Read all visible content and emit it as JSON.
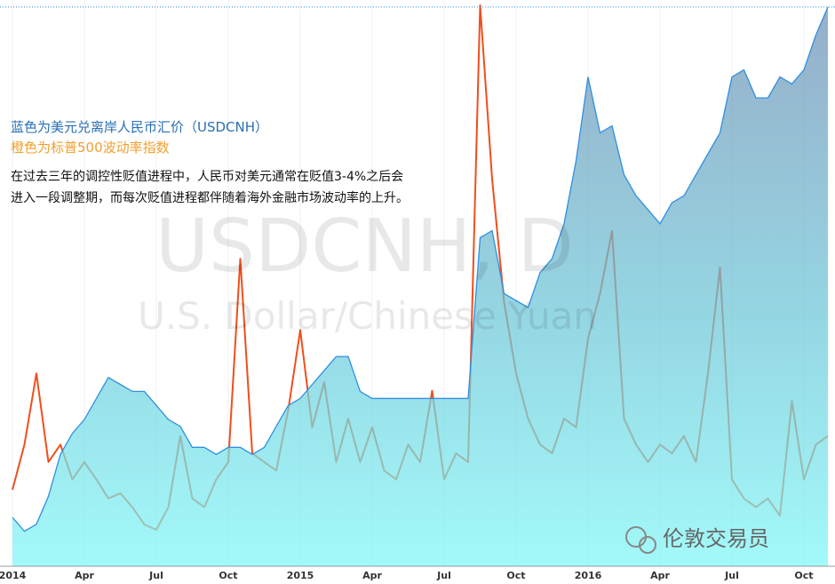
{
  "chart_data": {
    "type": "area",
    "series_notes": null,
    "annotations": [
      "在过去三年的调控性贬值进程中，人民币对美元通常在贬值3-4%之后会",
      "进入一段调整期，而每次贬值进程都伴随着海外金融市场波动率的上升。"
    ],
    "watermark": [
      "USDCNH, D",
      "U.S. Dollar/Chinese Yuan"
    ],
    "source": "伦敦交易员",
    "categories": [
      "2014",
      null,
      null,
      null,
      null,
      null,
      "Apr",
      null,
      null,
      null,
      null,
      null,
      "Jul",
      null,
      null,
      null,
      null,
      null,
      "Oct",
      null,
      null,
      null,
      null,
      null,
      "2015",
      null,
      null,
      null,
      null,
      null,
      "Apr",
      null,
      null,
      null,
      null,
      null,
      "Jul",
      null,
      null,
      null,
      null,
      null,
      "Oct",
      null,
      null,
      null,
      null,
      null,
      "2016",
      null,
      null,
      null,
      null,
      null,
      "Apr",
      null,
      null,
      null,
      null,
      null,
      "Jul",
      null,
      null,
      null,
      null,
      null,
      "Oct",
      null,
      null
    ],
    "ylim": [
      5.98,
      6.79
    ],
    "y2lim": [
      8.4,
      41.0
    ],
    "series": [
      {
        "name": "蓝色为美元兑离岸人民币汇价（USDCNH）",
        "type": "area",
        "color": "#2f8fe0",
        "values": [
          6.05,
          6.03,
          6.04,
          6.08,
          6.14,
          6.17,
          6.19,
          6.22,
          6.25,
          6.24,
          6.23,
          6.23,
          6.21,
          6.19,
          6.18,
          6.15,
          6.15,
          6.14,
          6.15,
          6.15,
          6.14,
          6.15,
          6.18,
          6.21,
          6.22,
          6.24,
          6.26,
          6.28,
          6.28,
          6.23,
          6.22,
          6.22,
          6.22,
          6.22,
          6.22,
          6.22,
          6.22,
          6.22,
          6.22,
          6.45,
          6.46,
          6.37,
          6.36,
          6.35,
          6.4,
          6.42,
          6.47,
          6.56,
          6.68,
          6.6,
          6.61,
          6.54,
          6.51,
          6.49,
          6.47,
          6.5,
          6.51,
          6.54,
          6.57,
          6.6,
          6.68,
          6.69,
          6.65,
          6.65,
          6.68,
          6.67,
          6.69,
          6.74,
          6.78
        ]
      },
      {
        "name": "橙色为标普500波动率指数",
        "type": "line",
        "axis": "y2",
        "color": "#f04e1c",
        "values": [
          12.8,
          15.4,
          19.5,
          14.4,
          15.4,
          13.4,
          14.4,
          13.4,
          12.3,
          12.6,
          11.8,
          10.8,
          10.5,
          11.8,
          15.9,
          12.3,
          11.8,
          13.4,
          14.4,
          26.1,
          14.9,
          14.4,
          13.9,
          17.4,
          22.0,
          16.4,
          19.0,
          14.4,
          16.9,
          14.4,
          16.4,
          13.9,
          13.4,
          15.4,
          14.4,
          18.5,
          13.4,
          14.9,
          14.4,
          40.7,
          30.7,
          23.6,
          19.5,
          16.9,
          15.4,
          14.9,
          16.9,
          16.4,
          21.5,
          24.1,
          27.7,
          16.9,
          15.4,
          14.4,
          15.4,
          14.9,
          15.9,
          14.4,
          19.5,
          25.6,
          13.4,
          12.3,
          11.8,
          12.3,
          11.3,
          17.9,
          13.4,
          15.4,
          15.9
        ]
      }
    ]
  }
}
